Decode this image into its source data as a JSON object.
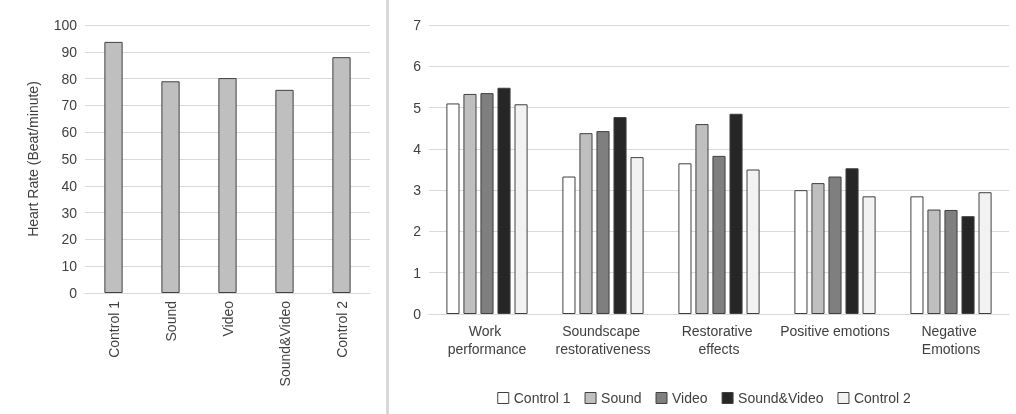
{
  "chart_data": [
    {
      "type": "bar",
      "ylabel": "Heart Rate (Beat/minute)",
      "categories": [
        "Control 1",
        "Sound",
        "Video",
        "Sound&Video",
        "Control 2"
      ],
      "values": [
        93.7,
        79,
        80.2,
        75.8,
        88
      ],
      "color": "#bfbfbf",
      "ylim": [
        0,
        100
      ],
      "yticks": [
        0,
        10,
        20,
        30,
        40,
        50,
        60,
        70,
        80,
        90,
        100
      ],
      "grid": "y",
      "legend": false
    },
    {
      "type": "bar",
      "categories": [
        "Work performance",
        "Soundscape restorativeness",
        "Restorative effects",
        "Positive emotions",
        "Negative Emotions"
      ],
      "series": [
        {
          "name": "Control 1",
          "color": "#ffffff",
          "values": [
            5.1,
            3.33,
            3.65,
            3.0,
            2.85
          ]
        },
        {
          "name": "Sound",
          "color": "#bfbfbf",
          "values": [
            5.33,
            4.38,
            4.6,
            3.17,
            2.53
          ]
        },
        {
          "name": "Video",
          "color": "#7f7f7f",
          "values": [
            5.35,
            4.43,
            3.83,
            3.33,
            2.52
          ]
        },
        {
          "name": "Sound&Video",
          "color": "#262626",
          "values": [
            5.48,
            4.77,
            4.85,
            3.53,
            2.37
          ]
        },
        {
          "name": "Control 2",
          "color": "#f2f2f2",
          "values": [
            5.08,
            3.8,
            3.5,
            2.85,
            2.95
          ]
        }
      ],
      "ylim": [
        0,
        7
      ],
      "yticks": [
        0,
        1,
        2,
        3,
        4,
        5,
        6,
        7
      ],
      "grid": "y",
      "legend": "bottom"
    }
  ]
}
